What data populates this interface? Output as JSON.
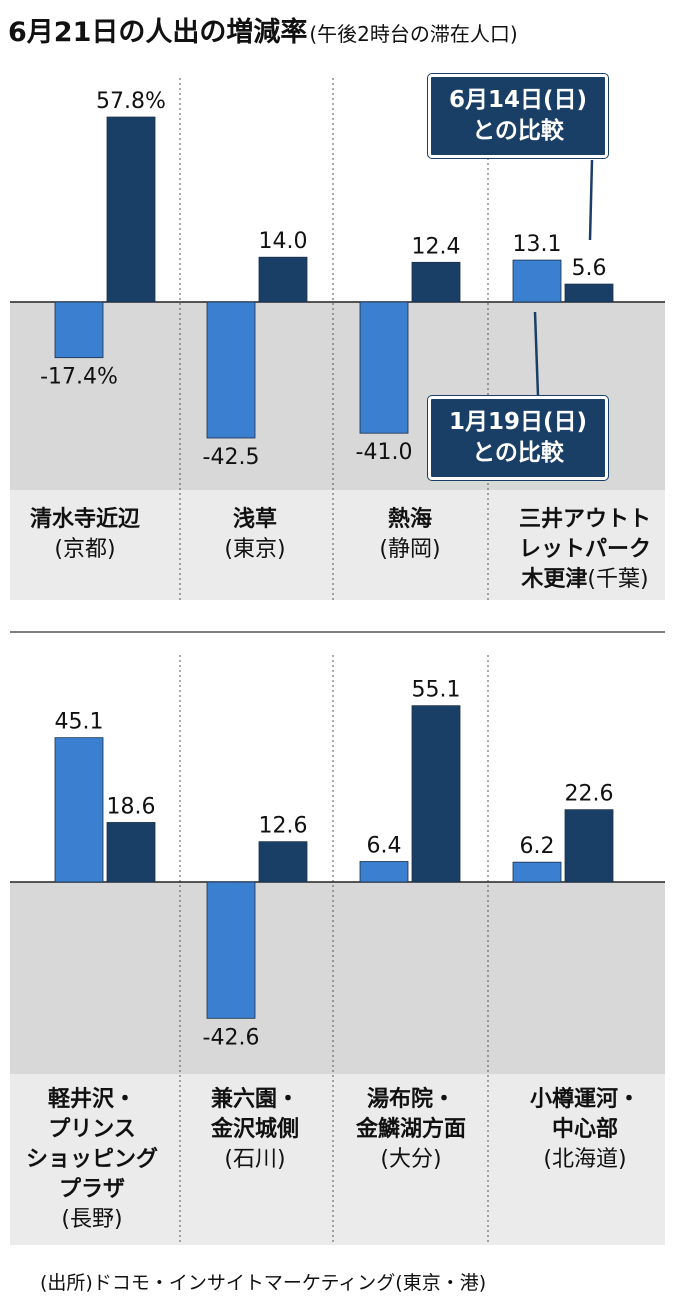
{
  "title": "6月21日の人出の増減率",
  "subtitle": "(午後2時台の滞在人口)",
  "source": "(出所)ドコモ・インサイトマーケティング(東京・港)",
  "colors": {
    "series1": "#3b7fd0",
    "series2": "#1a3f66",
    "negative_bg": "#d8d8d8",
    "callout_bg": "#1a3f66"
  },
  "chart_data": [
    {
      "type": "bar",
      "categories": [
        "清水寺近辺(京都)",
        "浅草(東京)",
        "熱海(静岡)",
        "三井アウトレットパーク木更津(千葉)"
      ],
      "series": [
        {
          "name": "1月19日(日)との比較",
          "values": [
            -17.4,
            -42.5,
            -41.0,
            13.1
          ],
          "labels": [
            "-17.4%",
            "-42.5",
            "-41.0",
            "13.1"
          ]
        },
        {
          "name": "6月14日(日)との比較",
          "values": [
            57.8,
            14.0,
            12.4,
            5.6
          ],
          "labels": [
            "57.8%",
            "14.0",
            "12.4",
            "5.6"
          ]
        }
      ],
      "grid": false
    },
    {
      "type": "bar",
      "categories": [
        "軽井沢・プリンスショッピングプラザ(長野)",
        "兼六園・金沢城側(石川)",
        "湯布院・金鱗湖方面(大分)",
        "小樽運河・中心部(北海道)"
      ],
      "series": [
        {
          "name": "1月19日(日)との比較",
          "values": [
            45.1,
            -42.6,
            6.4,
            6.2
          ],
          "labels": [
            "45.1",
            "-42.6",
            "6.4",
            "6.2"
          ]
        },
        {
          "name": "6月14日(日)との比較",
          "values": [
            18.6,
            12.6,
            55.1,
            22.6
          ],
          "labels": [
            "18.6",
            "12.6",
            "55.1",
            "22.6"
          ]
        }
      ],
      "grid": false
    }
  ],
  "callouts": {
    "june": {
      "line1": "6月14日(日)",
      "line2": "との比較"
    },
    "jan": {
      "line1": "1月19日(日)",
      "line2": "との比較"
    }
  },
  "labels_top": [
    {
      "name": "清水寺近辺",
      "pref": "(京都)"
    },
    {
      "name": "浅草",
      "pref": "(東京)"
    },
    {
      "name": "熱海",
      "pref": "(静岡)"
    },
    {
      "name1": "三井アウトト",
      "name2": "レットパーク",
      "name3": "木更津",
      "pref": "(千葉)"
    }
  ],
  "labels_bottom": [
    {
      "name1": "軽井沢・",
      "name2": "プリンス",
      "name3": "ショッピング",
      "name4": "プラザ",
      "pref": "(長野)"
    },
    {
      "name1": "兼六園・",
      "name2": "金沢城側",
      "pref": "(石川)"
    },
    {
      "name1": "湯布院・",
      "name2": "金鱗湖方面",
      "pref": "(大分)"
    },
    {
      "name1": "小樽運河・",
      "name2": "中心部",
      "pref": "(北海道)"
    }
  ]
}
